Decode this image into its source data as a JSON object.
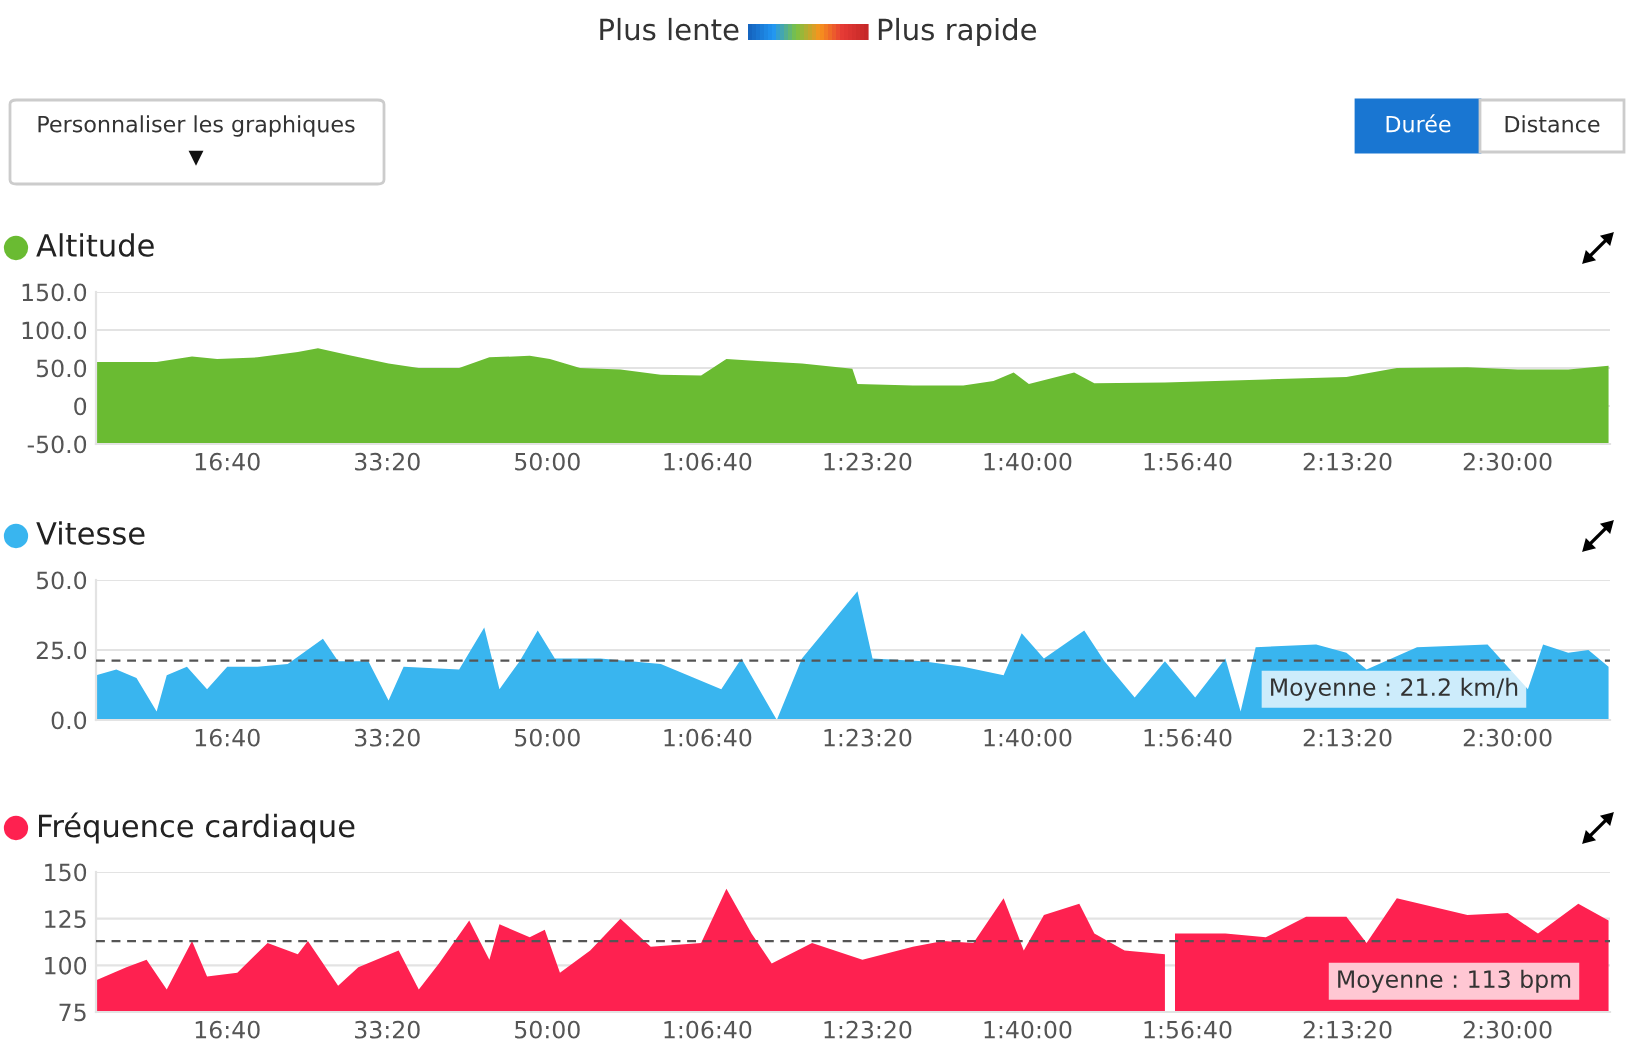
{
  "chart_data": [
    {
      "type": "other",
      "annotations": [
        "Plus lente",
        "Plus rapide",
        "Personnaliser les graphiques",
        "Durée",
        "Distance",
        "▼"
      ]
    },
    {
      "type": "area",
      "title": "Altitude",
      "grid": "y",
      "xlim": [
        180,
        9640
      ],
      "ylim": [
        -50,
        150
      ],
      "xticks": [
        {
          "value": 1000,
          "label": "16:40"
        },
        {
          "value": 2000,
          "label": "33:20"
        },
        {
          "value": 3000,
          "label": "50:00"
        },
        {
          "value": 4000,
          "label": "1:06:40"
        },
        {
          "value": 5000,
          "label": "1:23:20"
        },
        {
          "value": 6000,
          "label": "1:40:00"
        },
        {
          "value": 7000,
          "label": "1:56:40"
        },
        {
          "value": 8000,
          "label": "2:13:20"
        },
        {
          "value": 9000,
          "label": "2:30:00"
        }
      ],
      "yticks": [
        {
          "value": -50,
          "label": "-50.0"
        },
        0,
        {
          "value": 50,
          "label": "50.0"
        },
        {
          "value": 100,
          "label": "100.0"
        },
        {
          "value": 150,
          "label": "150.0"
        }
      ],
      "series": [
        {
          "color": "#6abb32",
          "x": [
            181,
            559,
            780,
            937,
            1189,
            1441,
            1567,
            1756,
            2008,
            2197,
            2449,
            2638,
            2890,
            3016,
            3205,
            3457,
            3709,
            3961,
            4119,
            4339,
            4591,
            4906,
            4938,
            5284,
            5599,
            5788,
            5914,
            6009,
            6292,
            6418,
            6859,
            7489,
            7993,
            8308,
            8749,
            9064,
            9379,
            9631
          ],
          "values": [
            58,
            58,
            65,
            62,
            64,
            71,
            76,
            67,
            56,
            50,
            50,
            64,
            66,
            62,
            50,
            48,
            41,
            40,
            62,
            59,
            56,
            49,
            29,
            27,
            27,
            33,
            44,
            29,
            44,
            30,
            31,
            35,
            38,
            50,
            51,
            48,
            48,
            53
          ]
        }
      ]
    },
    {
      "type": "area",
      "title": "Vitesse",
      "grid": "y",
      "xlim": [
        180,
        9640
      ],
      "ylim": [
        0,
        50
      ],
      "xticks": [
        {
          "value": 1000,
          "label": "16:40"
        },
        {
          "value": 2000,
          "label": "33:20"
        },
        {
          "value": 3000,
          "label": "50:00"
        },
        {
          "value": 4000,
          "label": "1:06:40"
        },
        {
          "value": 5000,
          "label": "1:23:20"
        },
        {
          "value": 6000,
          "label": "1:40:00"
        },
        {
          "value": 7000,
          "label": "1:56:40"
        },
        {
          "value": 8000,
          "label": "2:13:20"
        },
        {
          "value": 9000,
          "label": "2:30:00"
        }
      ],
      "yticks": [
        {
          "value": 0,
          "label": "0.0"
        },
        {
          "value": 25,
          "label": "25.0"
        },
        {
          "value": 50,
          "label": "50.0"
        }
      ],
      "ref_lines": [
        {
          "axis": "y",
          "value": 21.2,
          "label": "Moyenne : 21.2 km/h",
          "color": "#555555",
          "line_style": "dashed"
        }
      ],
      "series": [
        {
          "color": "#39b5ef",
          "x": [
            181,
            307,
            433,
            559,
            622,
            748,
            874,
            1000,
            1189,
            1378,
            1598,
            1693,
            1882,
            2008,
            2102,
            2449,
            2606,
            2701,
            2827,
            2940,
            3047,
            3331,
            3709,
            4087,
            4213,
            4434,
            4591,
            4938,
            5032,
            5347,
            5599,
            5851,
            5964,
            6103,
            6355,
            6481,
            6670,
            6859,
            7048,
            7237,
            7332,
            7426,
            7804,
            7993,
            8119,
            8434,
            8875,
            9127,
            9222,
            9379,
            9505,
            9631
          ],
          "values": [
            16,
            18,
            15,
            3,
            16,
            19,
            11,
            19,
            19,
            20,
            29,
            21,
            21,
            7,
            19,
            18,
            33,
            11,
            21,
            32,
            22,
            22,
            20,
            11,
            22,
            0,
            22,
            46,
            22,
            21,
            19,
            16,
            31,
            22,
            32,
            21,
            8,
            21,
            8,
            22,
            3,
            26,
            27,
            24,
            18,
            26,
            27,
            11,
            27,
            24,
            25,
            19
          ]
        }
      ]
    },
    {
      "type": "area",
      "title": "Fréquence cardiaque",
      "grid": "y",
      "xlim": [
        180,
        9640
      ],
      "ylim": [
        75,
        150
      ],
      "xticks": [
        {
          "value": 1000,
          "label": "16:40"
        },
        {
          "value": 2000,
          "label": "33:20"
        },
        {
          "value": 3000,
          "label": "50:00"
        },
        {
          "value": 4000,
          "label": "1:06:40"
        },
        {
          "value": 5000,
          "label": "1:23:20"
        },
        {
          "value": 6000,
          "label": "1:40:00"
        },
        {
          "value": 7000,
          "label": "1:56:40"
        },
        {
          "value": 8000,
          "label": "2:13:20"
        },
        {
          "value": 9000,
          "label": "2:30:00"
        }
      ],
      "yticks": [
        75,
        100,
        125,
        150
      ],
      "ref_lines": [
        {
          "axis": "y",
          "value": 113,
          "label": "Moyenne : 113 bpm",
          "color": "#555555",
          "line_style": "dashed"
        }
      ],
      "series": [
        {
          "color": "#fe2150",
          "x": [
            181,
            370,
            496,
            622,
            780,
            874,
            1063,
            1252,
            1441,
            1504,
            1693,
            1819,
            2071,
            2197,
            2323,
            2512,
            2638,
            2701,
            2890,
            2984,
            3079,
            3268,
            3457,
            3646,
            3961,
            4119,
            4276,
            4402,
            4654,
            4969,
            5284,
            5473,
            5662,
            5851,
            5977,
            6103,
            6324,
            6418,
            6607,
            6859,
            6880,
            6922,
            7237,
            7489,
            7741,
            7993,
            8119,
            8308,
            8749,
            9001,
            9190,
            9442,
            9631
          ],
          "values": [
            92,
            99,
            103,
            87,
            113,
            94,
            96,
            112,
            106,
            113,
            89,
            99,
            108,
            87,
            101,
            124,
            103,
            122,
            115,
            119,
            96,
            108,
            125,
            110,
            112,
            141,
            117,
            101,
            112,
            103,
            110,
            113,
            112,
            136,
            108,
            127,
            133,
            117,
            108,
            106,
            null,
            117,
            117,
            115,
            126,
            126,
            112,
            136,
            127,
            128,
            117,
            133,
            124
          ]
        }
      ]
    }
  ]
}
